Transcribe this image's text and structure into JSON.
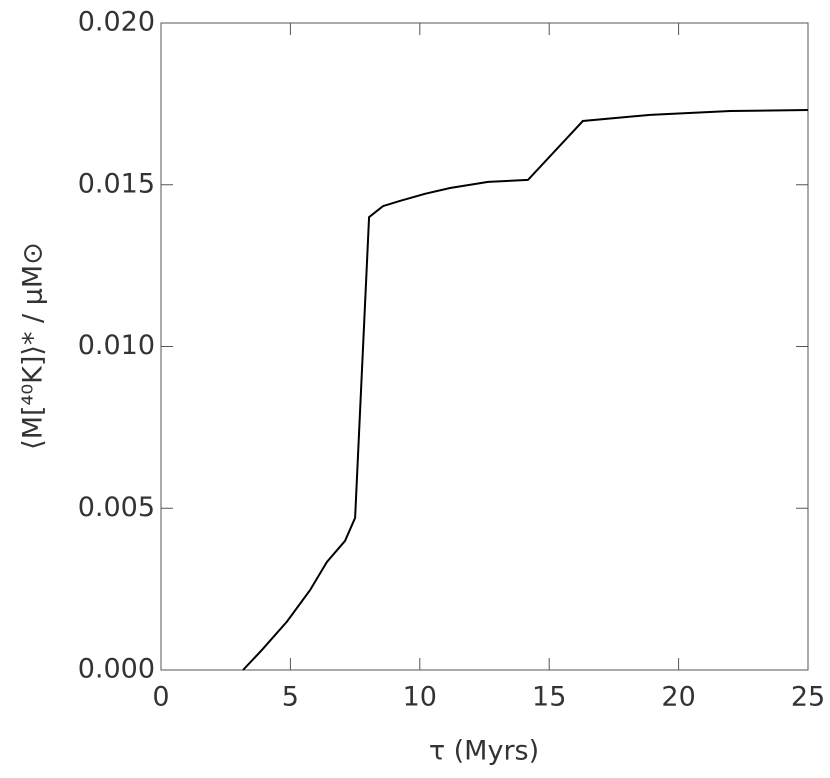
{
  "chart_data": {
    "type": "line",
    "xlabel": "τ (Myrs)",
    "ylabel": "⟨M[⁴⁰K]⟩* / μM⊙",
    "x": [
      3.17,
      3.9,
      4.87,
      5.76,
      6.41,
      7.11,
      7.5,
      8.04,
      8.58,
      9.23,
      10.2,
      11.17,
      12.64,
      14.18,
      16.3,
      18.9,
      22,
      25
    ],
    "series": [
      {
        "color": "#000000",
        "values": [
          0,
          0.00062,
          0.0015,
          0.00247,
          0.00334,
          0.00399,
          0.0047,
          0.014,
          0.01434,
          0.0145,
          0.01472,
          0.0149,
          0.01509,
          0.01515,
          0.01697,
          0.01716,
          0.01728,
          0.01731
        ]
      }
    ],
    "xlim": [
      0,
      25
    ],
    "xticks": [
      0,
      5,
      10,
      15,
      20,
      25
    ],
    "ylim": [
      0,
      0.02
    ],
    "yticks": [
      {
        "value": 0,
        "label": "0.000"
      },
      {
        "value": 0.005,
        "label": "0.005"
      },
      {
        "value": 0.01,
        "label": "0.010"
      },
      {
        "value": 0.015,
        "label": "0.015"
      },
      {
        "value": 0.02,
        "label": "0.020"
      }
    ]
  }
}
